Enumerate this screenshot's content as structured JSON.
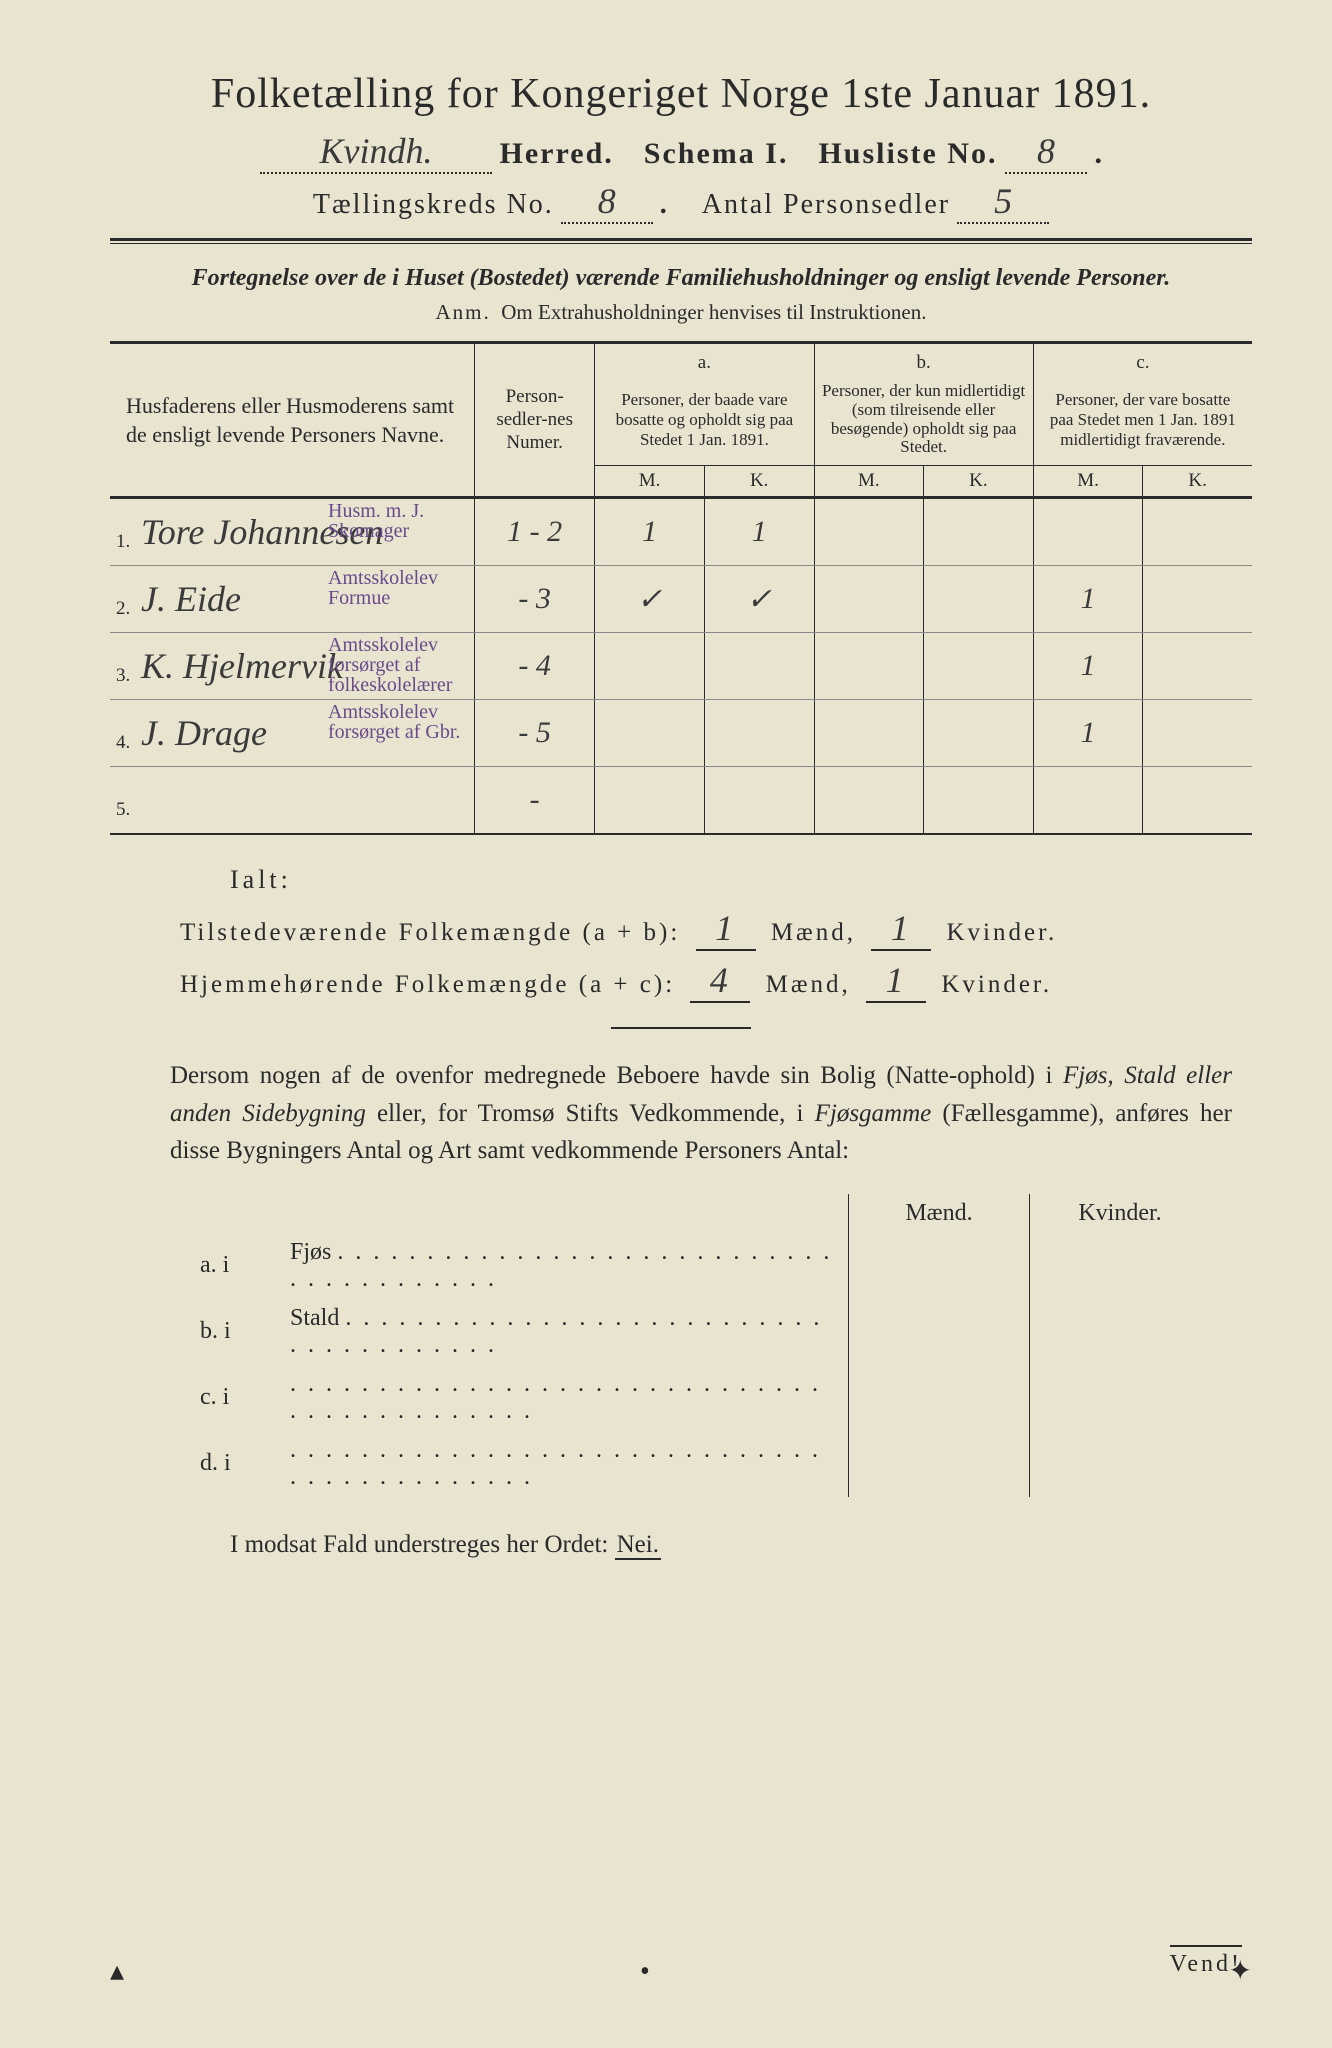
{
  "title": "Folketælling for Kongeriget Norge 1ste Januar 1891.",
  "header": {
    "herred_value": "Kvindh.",
    "herred_label": "Herred.",
    "schema": "Schema I.",
    "husliste_label": "Husliste No.",
    "husliste_value": "8",
    "kreds_label": "Tællingskreds No.",
    "kreds_value": "8",
    "antal_label": "Antal Personsedler",
    "antal_value": "5"
  },
  "subtitle": "Fortegnelse over de i Huset (Bostedet) værende Familiehusholdninger og ensligt levende Personer.",
  "anm_label": "Anm.",
  "anm_text": "Om Extrahusholdninger henvises til Instruktionen.",
  "columns": {
    "names": "Husfaderens eller Husmoderens samt de ensligt levende Personers Navne.",
    "numer": "Person-sedler-nes Numer.",
    "a_label": "a.",
    "a_text": "Personer, der baade vare bosatte og opholdt sig paa Stedet 1 Jan. 1891.",
    "b_label": "b.",
    "b_text": "Personer, der kun midlertidigt (som tilreisende eller besøgende) opholdt sig paa Stedet.",
    "c_label": "c.",
    "c_text": "Personer, der vare bosatte paa Stedet men 1 Jan. 1891 midlertidigt fraværende.",
    "m": "M.",
    "k": "K."
  },
  "rows": [
    {
      "n": "1.",
      "name": "Tore Johannesen",
      "numer": "1 - 2",
      "aM": "1",
      "aK": "1",
      "bM": "",
      "bK": "",
      "cM": "",
      "cK": "",
      "note": "Husm. m. J. Skomager"
    },
    {
      "n": "2.",
      "name": "J. Eide",
      "numer": "- 3",
      "aM": "✓",
      "aK": "✓",
      "bM": "",
      "bK": "",
      "cM": "1",
      "cK": "",
      "note": "Amtsskolelev Formue"
    },
    {
      "n": "3.",
      "name": "K. Hjelmervik",
      "numer": "- 4",
      "aM": "",
      "aK": "",
      "bM": "",
      "bK": "",
      "cM": "1",
      "cK": "",
      "note": "Amtsskolelev forsørget af folkeskolelærer"
    },
    {
      "n": "4.",
      "name": "J. Drage",
      "numer": "- 5",
      "aM": "",
      "aK": "",
      "bM": "",
      "bK": "",
      "cM": "1",
      "cK": "",
      "note": "Amtsskolelev forsørget af Gbr."
    },
    {
      "n": "5.",
      "name": "",
      "numer": "-",
      "aM": "",
      "aK": "",
      "bM": "",
      "bK": "",
      "cM": "",
      "cK": "",
      "note": ""
    }
  ],
  "ialt": "Ialt:",
  "sum1_label": "Tilstedeværende Folkemængde (a + b):",
  "sum1_m": "1",
  "sum1_k": "1",
  "sum2_label": "Hjemmehørende Folkemængde (a + c):",
  "sum2_m": "4",
  "sum2_k": "1",
  "maend": "Mænd,",
  "kvinder": "Kvinder.",
  "para": "Dersom nogen af de ovenfor medregnede Beboere havde sin Bolig (Natteophold) i Fjøs, Stald eller anden Sidebygning eller, for Tromsø Stifts Vedkommende, i Fjøsgamme (Fællesgamme), anføres her disse Bygningers Antal og Art samt vedkommende Personers Antal:",
  "small_headers": {
    "m": "Mænd.",
    "k": "Kvinder."
  },
  "small_rows": [
    {
      "lab": "a.  i",
      "text": "Fjøs"
    },
    {
      "lab": "b.  i",
      "text": "Stald"
    },
    {
      "lab": "c.  i",
      "text": ""
    },
    {
      "lab": "d.  i",
      "text": ""
    }
  ],
  "nei_line_pre": "I modsat Fald understreges her Ordet:",
  "nei": "Nei.",
  "vend": "Vend!",
  "colors": {
    "paper": "#e8e4d0",
    "ink": "#2a2a2a",
    "purple": "#6a4a8a"
  }
}
